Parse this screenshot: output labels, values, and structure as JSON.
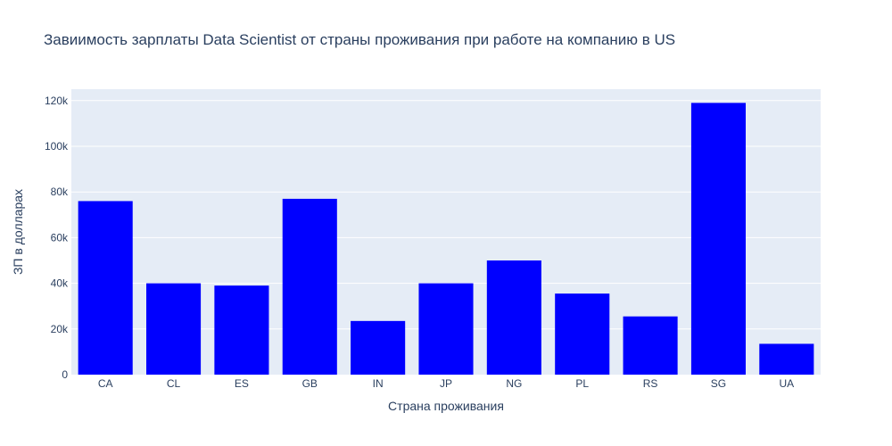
{
  "chart_data": {
    "type": "bar",
    "title": "Завиимость зарплаты Data Scientist от страны проживания при работе на компанию в US",
    "xlabel": "Страна проживания",
    "ylabel": "ЗП в долларах",
    "categories": [
      "CA",
      "CL",
      "ES",
      "GB",
      "IN",
      "JP",
      "NG",
      "PL",
      "RS",
      "SG",
      "UA"
    ],
    "values": [
      76000,
      40000,
      39000,
      77000,
      23500,
      40000,
      50000,
      35500,
      25500,
      119000,
      13500
    ],
    "ylim": [
      0,
      125000
    ],
    "yticks": [
      0,
      20000,
      40000,
      60000,
      80000,
      100000,
      120000
    ],
    "ytick_labels": [
      "0",
      "20k",
      "40k",
      "60k",
      "80k",
      "100k",
      "120k"
    ],
    "grid": true,
    "bar_color": "#0000ff",
    "plot_background": "#e5ecf6"
  }
}
